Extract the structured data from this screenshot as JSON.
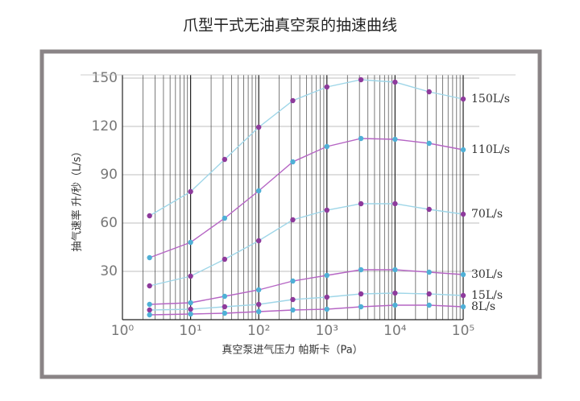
{
  "chart_data": {
    "type": "line",
    "title": "爪型干式无油真空泵的抽速曲线",
    "x_label": "真空泵进气压力 帕斯卡（Pa）",
    "y_label": "抽气速率 升/秒（L/s）",
    "x_scale": "log",
    "x": [
      2.5,
      10,
      31.6,
      100,
      316,
      1000,
      3162,
      10000,
      31623,
      100000
    ],
    "series": [
      {
        "name": "150L/s",
        "color": "#9fd6e8",
        "marker_color": "#8e3a9c",
        "values": [
          64.5,
          79.5,
          99.5,
          119.5,
          136,
          144.5,
          149,
          147.5,
          141.5,
          137
        ]
      },
      {
        "name": "110L/s",
        "color": "#b565c4",
        "marker_color": "#4fb0d6",
        "values": [
          38.5,
          48,
          63,
          80,
          98,
          107.5,
          112.5,
          112,
          109.5,
          105.5
        ]
      },
      {
        "name": "70L/s",
        "color": "#9fd6e8",
        "marker_color": "#8e3a9c",
        "values": [
          21,
          27,
          37.5,
          49,
          62,
          68,
          72,
          72,
          68.5,
          65.5
        ]
      },
      {
        "name": "30L/s",
        "color": "#b565c4",
        "marker_color": "#4fb0d6",
        "values": [
          9.5,
          10.5,
          14.5,
          18.5,
          24,
          27.5,
          31,
          31,
          29.5,
          28
        ]
      },
      {
        "name": "15L/s",
        "color": "#9fd6e8",
        "marker_color": "#8e3a9c",
        "values": [
          6,
          6.5,
          8,
          9.5,
          12.5,
          14,
          16,
          16.5,
          16,
          15
        ]
      },
      {
        "name": "8L/s",
        "color": "#b565c4",
        "marker_color": "#4fb0d6",
        "values": [
          3,
          3.5,
          4,
          5,
          6,
          6.5,
          8,
          9,
          9,
          8
        ]
      }
    ],
    "xlim": [
      1,
      100000
    ],
    "xticks": [
      {
        "value": 1,
        "label": "10⁰"
      },
      {
        "value": 10,
        "label": "10¹"
      },
      {
        "value": 100,
        "label": "10²"
      },
      {
        "value": 1000,
        "label": "10³"
      },
      {
        "value": 10000,
        "label": "10⁴"
      },
      {
        "value": 100000,
        "label": "10⁵"
      }
    ],
    "ylim": [
      0,
      150
    ],
    "yticks": [
      30,
      60,
      90,
      120,
      150
    ],
    "grid": true,
    "minor_grid": true
  }
}
